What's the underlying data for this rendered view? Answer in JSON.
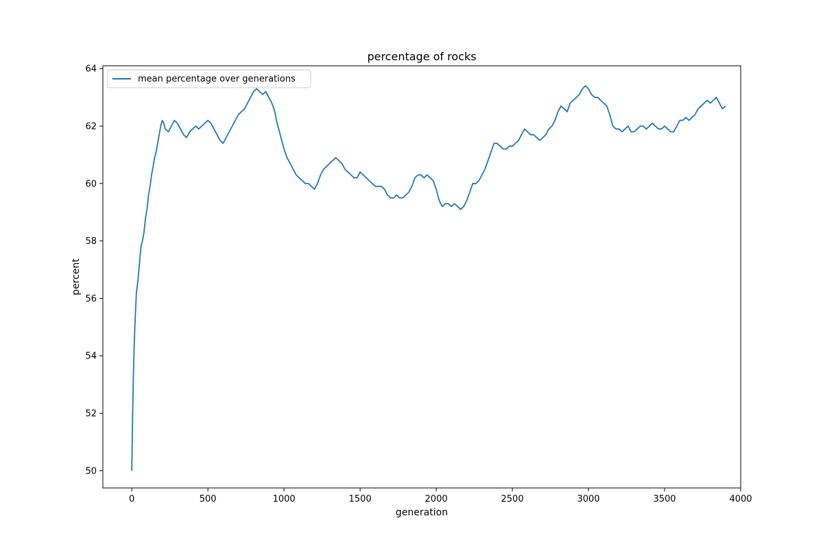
{
  "chart_data": {
    "type": "line",
    "title": "percentage of rocks",
    "xlabel": "generation",
    "ylabel": "percent",
    "xlim": [
      -190,
      4000
    ],
    "ylim": [
      49.4,
      64.1
    ],
    "xticks": [
      0,
      500,
      1000,
      1500,
      2000,
      2500,
      3000,
      3500,
      4000
    ],
    "yticks": [
      50,
      52,
      54,
      56,
      58,
      60,
      62,
      64
    ],
    "grid": false,
    "legend": {
      "location": "upper left",
      "entries": [
        "mean percentage over generations"
      ]
    },
    "series": [
      {
        "name": "mean percentage over generations",
        "color": "#1f77b4",
        "points": [
          [
            0,
            50.0
          ],
          [
            5,
            51.8
          ],
          [
            10,
            53.2
          ],
          [
            15,
            54.2
          ],
          [
            20,
            55.0
          ],
          [
            30,
            56.2
          ],
          [
            40,
            56.6
          ],
          [
            50,
            57.2
          ],
          [
            60,
            57.8
          ],
          [
            70,
            58.0
          ],
          [
            80,
            58.3
          ],
          [
            90,
            58.8
          ],
          [
            100,
            59.1
          ],
          [
            110,
            59.6
          ],
          [
            120,
            59.9
          ],
          [
            130,
            60.3
          ],
          [
            140,
            60.6
          ],
          [
            150,
            60.9
          ],
          [
            160,
            61.1
          ],
          [
            170,
            61.4
          ],
          [
            180,
            61.7
          ],
          [
            190,
            62.0
          ],
          [
            200,
            62.2
          ],
          [
            210,
            62.1
          ],
          [
            220,
            61.9
          ],
          [
            240,
            61.8
          ],
          [
            260,
            62.0
          ],
          [
            280,
            62.2
          ],
          [
            300,
            62.1
          ],
          [
            320,
            61.9
          ],
          [
            340,
            61.7
          ],
          [
            360,
            61.6
          ],
          [
            380,
            61.8
          ],
          [
            400,
            61.9
          ],
          [
            420,
            62.0
          ],
          [
            440,
            61.9
          ],
          [
            460,
            62.0
          ],
          [
            480,
            62.1
          ],
          [
            500,
            62.2
          ],
          [
            520,
            62.1
          ],
          [
            540,
            61.9
          ],
          [
            560,
            61.7
          ],
          [
            580,
            61.5
          ],
          [
            600,
            61.4
          ],
          [
            620,
            61.6
          ],
          [
            640,
            61.8
          ],
          [
            660,
            62.0
          ],
          [
            680,
            62.2
          ],
          [
            700,
            62.4
          ],
          [
            720,
            62.5
          ],
          [
            740,
            62.6
          ],
          [
            760,
            62.8
          ],
          [
            780,
            63.0
          ],
          [
            800,
            63.2
          ],
          [
            820,
            63.3
          ],
          [
            840,
            63.2
          ],
          [
            860,
            63.1
          ],
          [
            880,
            63.2
          ],
          [
            900,
            63.0
          ],
          [
            920,
            62.8
          ],
          [
            940,
            62.5
          ],
          [
            950,
            62.2
          ],
          [
            960,
            62.0
          ],
          [
            970,
            61.8
          ],
          [
            980,
            61.6
          ],
          [
            990,
            61.4
          ],
          [
            1000,
            61.2
          ],
          [
            1020,
            60.9
          ],
          [
            1040,
            60.7
          ],
          [
            1060,
            60.5
          ],
          [
            1080,
            60.3
          ],
          [
            1100,
            60.2
          ],
          [
            1120,
            60.1
          ],
          [
            1140,
            60.0
          ],
          [
            1160,
            60.0
          ],
          [
            1180,
            59.9
          ],
          [
            1200,
            59.8
          ],
          [
            1220,
            60.0
          ],
          [
            1240,
            60.3
          ],
          [
            1260,
            60.5
          ],
          [
            1280,
            60.6
          ],
          [
            1300,
            60.7
          ],
          [
            1320,
            60.8
          ],
          [
            1340,
            60.9
          ],
          [
            1360,
            60.8
          ],
          [
            1380,
            60.7
          ],
          [
            1400,
            60.5
          ],
          [
            1420,
            60.4
          ],
          [
            1440,
            60.3
          ],
          [
            1460,
            60.2
          ],
          [
            1480,
            60.2
          ],
          [
            1500,
            60.4
          ],
          [
            1520,
            60.3
          ],
          [
            1540,
            60.2
          ],
          [
            1560,
            60.1
          ],
          [
            1580,
            60.0
          ],
          [
            1600,
            59.9
          ],
          [
            1620,
            59.9
          ],
          [
            1640,
            59.9
          ],
          [
            1660,
            59.8
          ],
          [
            1680,
            59.6
          ],
          [
            1700,
            59.5
          ],
          [
            1720,
            59.5
          ],
          [
            1740,
            59.6
          ],
          [
            1760,
            59.5
          ],
          [
            1780,
            59.5
          ],
          [
            1800,
            59.6
          ],
          [
            1820,
            59.7
          ],
          [
            1840,
            59.9
          ],
          [
            1860,
            60.2
          ],
          [
            1880,
            60.3
          ],
          [
            1900,
            60.3
          ],
          [
            1920,
            60.2
          ],
          [
            1940,
            60.3
          ],
          [
            1960,
            60.2
          ],
          [
            1980,
            60.1
          ],
          [
            2000,
            59.8
          ],
          [
            2020,
            59.4
          ],
          [
            2040,
            59.2
          ],
          [
            2060,
            59.3
          ],
          [
            2080,
            59.3
          ],
          [
            2100,
            59.2
          ],
          [
            2120,
            59.3
          ],
          [
            2140,
            59.2
          ],
          [
            2160,
            59.1
          ],
          [
            2180,
            59.2
          ],
          [
            2200,
            59.4
          ],
          [
            2220,
            59.7
          ],
          [
            2240,
            60.0
          ],
          [
            2260,
            60.0
          ],
          [
            2280,
            60.1
          ],
          [
            2300,
            60.3
          ],
          [
            2320,
            60.5
          ],
          [
            2340,
            60.8
          ],
          [
            2360,
            61.1
          ],
          [
            2380,
            61.4
          ],
          [
            2400,
            61.4
          ],
          [
            2420,
            61.3
          ],
          [
            2440,
            61.2
          ],
          [
            2460,
            61.2
          ],
          [
            2480,
            61.3
          ],
          [
            2500,
            61.3
          ],
          [
            2520,
            61.4
          ],
          [
            2540,
            61.5
          ],
          [
            2560,
            61.7
          ],
          [
            2580,
            61.9
          ],
          [
            2600,
            61.8
          ],
          [
            2620,
            61.7
          ],
          [
            2640,
            61.7
          ],
          [
            2660,
            61.6
          ],
          [
            2680,
            61.5
          ],
          [
            2700,
            61.6
          ],
          [
            2720,
            61.7
          ],
          [
            2740,
            61.9
          ],
          [
            2760,
            62.0
          ],
          [
            2780,
            62.2
          ],
          [
            2800,
            62.5
          ],
          [
            2820,
            62.7
          ],
          [
            2840,
            62.6
          ],
          [
            2860,
            62.5
          ],
          [
            2880,
            62.8
          ],
          [
            2900,
            62.9
          ],
          [
            2920,
            63.0
          ],
          [
            2940,
            63.1
          ],
          [
            2960,
            63.3
          ],
          [
            2980,
            63.4
          ],
          [
            3000,
            63.3
          ],
          [
            3020,
            63.1
          ],
          [
            3040,
            63.0
          ],
          [
            3060,
            63.0
          ],
          [
            3080,
            62.9
          ],
          [
            3100,
            62.8
          ],
          [
            3120,
            62.7
          ],
          [
            3140,
            62.4
          ],
          [
            3160,
            62.0
          ],
          [
            3180,
            61.9
          ],
          [
            3200,
            61.9
          ],
          [
            3220,
            61.8
          ],
          [
            3240,
            61.9
          ],
          [
            3260,
            62.0
          ],
          [
            3280,
            61.8
          ],
          [
            3300,
            61.8
          ],
          [
            3320,
            61.9
          ],
          [
            3340,
            62.0
          ],
          [
            3360,
            62.0
          ],
          [
            3380,
            61.9
          ],
          [
            3400,
            62.0
          ],
          [
            3420,
            62.1
          ],
          [
            3440,
            62.0
          ],
          [
            3460,
            61.9
          ],
          [
            3480,
            61.9
          ],
          [
            3500,
            62.0
          ],
          [
            3520,
            61.9
          ],
          [
            3540,
            61.8
          ],
          [
            3560,
            61.8
          ],
          [
            3580,
            62.0
          ],
          [
            3600,
            62.2
          ],
          [
            3620,
            62.2
          ],
          [
            3640,
            62.3
          ],
          [
            3660,
            62.2
          ],
          [
            3680,
            62.3
          ],
          [
            3700,
            62.4
          ],
          [
            3720,
            62.6
          ],
          [
            3740,
            62.7
          ],
          [
            3760,
            62.8
          ],
          [
            3780,
            62.9
          ],
          [
            3800,
            62.8
          ],
          [
            3820,
            62.9
          ],
          [
            3840,
            63.0
          ],
          [
            3860,
            62.8
          ],
          [
            3880,
            62.6
          ],
          [
            3900,
            62.7
          ]
        ]
      }
    ]
  }
}
